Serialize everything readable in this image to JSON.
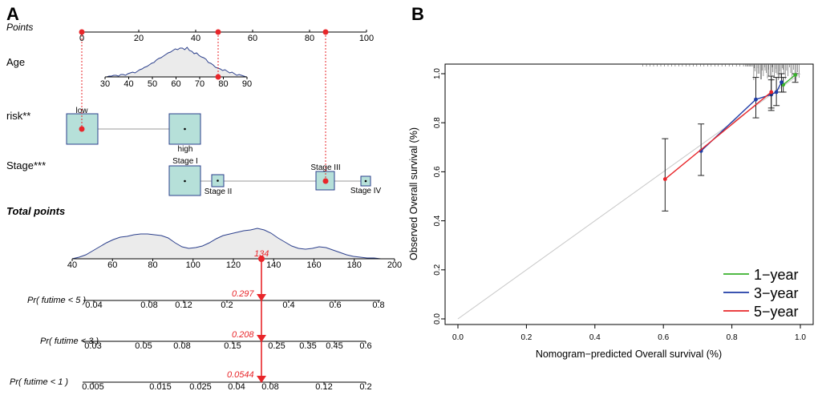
{
  "panel_a": {
    "letter": "A",
    "points_label": "Points",
    "age_label": "Age",
    "risk_label": "risk**",
    "stage_label": "Stage***",
    "total_label": "Total points",
    "points_ticks": [
      "0",
      "20",
      "40",
      "60",
      "80",
      "100"
    ],
    "age_ticks": [
      "30",
      "40",
      "50",
      "60",
      "70",
      "80",
      "90"
    ],
    "risk_low": "low",
    "risk_high": "high",
    "stage_names": [
      "Stage I",
      "Stage II",
      "Stage III",
      "Stage IV"
    ],
    "total_ticks": [
      "40",
      "60",
      "80",
      "100",
      "120",
      "140",
      "160",
      "180",
      "200"
    ],
    "total_value": "134",
    "pr5_label": "Pr( futime < 5 )",
    "pr5_ticks": [
      "0.04",
      "0.08",
      "0.12",
      "0.2",
      "0.4",
      "0.6",
      "0.8"
    ],
    "pr5_value": "0.297",
    "pr3_label": "Pr( futime < 3 )",
    "pr3_ticks": [
      "0.03",
      "0.05",
      "0.08",
      "0.15",
      "0.25",
      "0.35",
      "0.45",
      "0.6"
    ],
    "pr3_value": "0.208",
    "pr1_label": "Pr( futime < 1 )",
    "pr1_ticks": [
      "0.005",
      "0.015",
      "0.025",
      "0.04",
      "0.08",
      "0.12",
      "0.2"
    ],
    "pr1_value": "0.0544"
  },
  "panel_b": {
    "letter": "B",
    "xlabel": "Nomogram−predicted Overall survival (%)",
    "ylabel": "Observed Overall survival (%)",
    "ticks": [
      "0.0",
      "0.2",
      "0.4",
      "0.6",
      "0.8",
      "1.0"
    ],
    "legend": [
      "1−year",
      "3−year",
      "5−year"
    ]
  },
  "colors": {
    "fill": "#b6e0d9",
    "box_stroke": "#2b3f8c",
    "density_fill": "#ebebeb",
    "density_stroke": "#2b3f8c",
    "red": "#e8262a",
    "year1": "#38b02b",
    "year3": "#1f3ca6",
    "year5": "#e8262a",
    "diag": "#c8c8c8"
  },
  "chart_data": [
    {
      "type": "nomogram",
      "title": "A",
      "points_axis": {
        "range": [
          0,
          100
        ],
        "ticks": [
          0,
          20,
          40,
          60,
          80,
          100
        ]
      },
      "variables": [
        {
          "name": "Age",
          "type": "continuous",
          "ticks": [
            30,
            40,
            50,
            60,
            70,
            80,
            90
          ],
          "selected_value": 78,
          "selected_points": 48
        },
        {
          "name": "risk**",
          "levels": [
            "low",
            "high"
          ],
          "level_points": [
            0,
            37
          ],
          "selected": "low",
          "selected_points": 0
        },
        {
          "name": "Stage***",
          "levels": [
            "Stage I",
            "Stage II",
            "Stage III",
            "Stage IV"
          ],
          "level_points": [
            37,
            48,
            86,
            100
          ],
          "selected": "Stage III",
          "selected_points": 86
        }
      ],
      "total_points": {
        "range": [
          40,
          200
        ],
        "ticks": [
          40,
          60,
          80,
          100,
          120,
          140,
          160,
          180,
          200
        ],
        "value": 134
      },
      "predictions": [
        {
          "label": "Pr( futime < 5 )",
          "ticks": [
            0.04,
            0.08,
            0.12,
            0.2,
            0.4,
            0.6,
            0.8
          ],
          "value": 0.297
        },
        {
          "label": "Pr( futime < 3 )",
          "ticks": [
            0.03,
            0.05,
            0.08,
            0.15,
            0.25,
            0.35,
            0.45,
            0.6
          ],
          "value": 0.208
        },
        {
          "label": "Pr( futime < 1 )",
          "ticks": [
            0.005,
            0.015,
            0.025,
            0.04,
            0.08,
            0.12,
            0.2
          ],
          "value": 0.0544
        }
      ]
    },
    {
      "type": "line",
      "title": "B",
      "xlabel": "Nomogram−predicted Overall survival (%)",
      "ylabel": "Observed Overall survival (%)",
      "xlim": [
        -0.04,
        1.04
      ],
      "ylim": [
        -0.04,
        1.04
      ],
      "reference_line": [
        [
          0,
          0
        ],
        [
          1,
          1
        ]
      ],
      "legend_position": "bottom-right",
      "series": [
        {
          "name": "1−year",
          "x": [
            0.95,
            0.985
          ],
          "y": [
            0.955,
            0.995
          ],
          "ci": [
            [
              0.925,
              0.985
            ],
            [
              0.965,
              1.0
            ]
          ]
        },
        {
          "name": "3−year",
          "x": [
            0.71,
            0.87,
            0.915,
            0.93,
            0.945
          ],
          "y": [
            0.685,
            0.895,
            0.915,
            0.925,
            0.965
          ],
          "ci": [
            [
              0.585,
              0.795
            ],
            [
              0.82,
              0.985
            ],
            [
              0.86,
              0.975
            ],
            [
              0.87,
              0.985
            ],
            [
              0.925,
              1.0
            ]
          ]
        },
        {
          "name": "5−year",
          "x": [
            0.605,
            0.915
          ],
          "y": [
            0.57,
            0.925
          ],
          "ci": [
            [
              0.44,
              0.735
            ],
            [
              0.85,
              0.99
            ]
          ]
        }
      ]
    }
  ]
}
